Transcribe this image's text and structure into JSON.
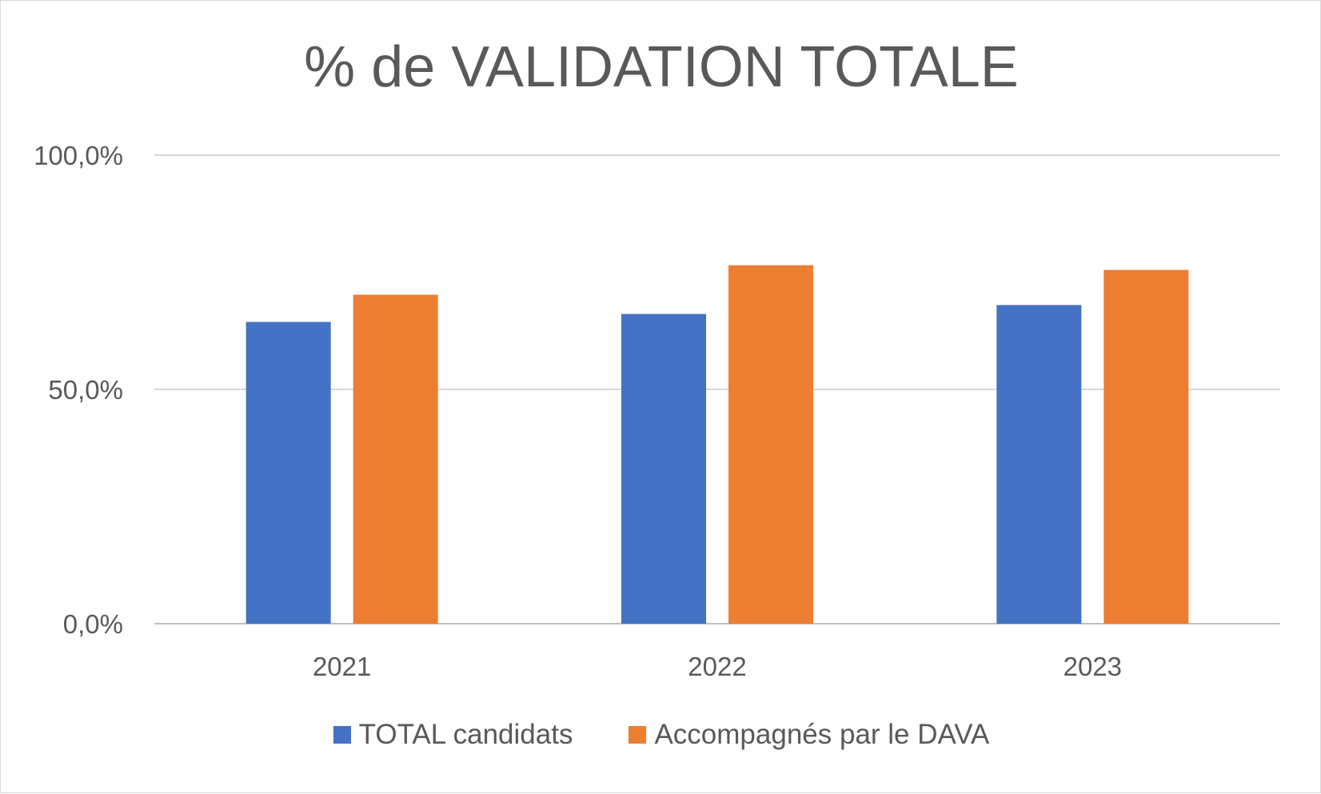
{
  "chart_data": {
    "type": "bar",
    "title": "% de VALIDATION TOTALE",
    "xlabel": "",
    "ylabel": "",
    "categories": [
      "2021",
      "2022",
      "2023"
    ],
    "series": [
      {
        "name": "TOTAL candidats",
        "values": [
          64.4,
          66.1,
          68.0
        ],
        "color": "#4472c4"
      },
      {
        "name": "Accompagnés par le DAVA",
        "values": [
          70.2,
          76.5,
          75.5
        ],
        "color": "#ed7d31"
      }
    ],
    "ylim": [
      0,
      100
    ],
    "yticks": [
      0,
      50,
      100
    ],
    "ytick_labels": [
      "0,0%",
      "50,0%",
      "100,0%"
    ],
    "grid": true,
    "legend_position": "bottom"
  }
}
